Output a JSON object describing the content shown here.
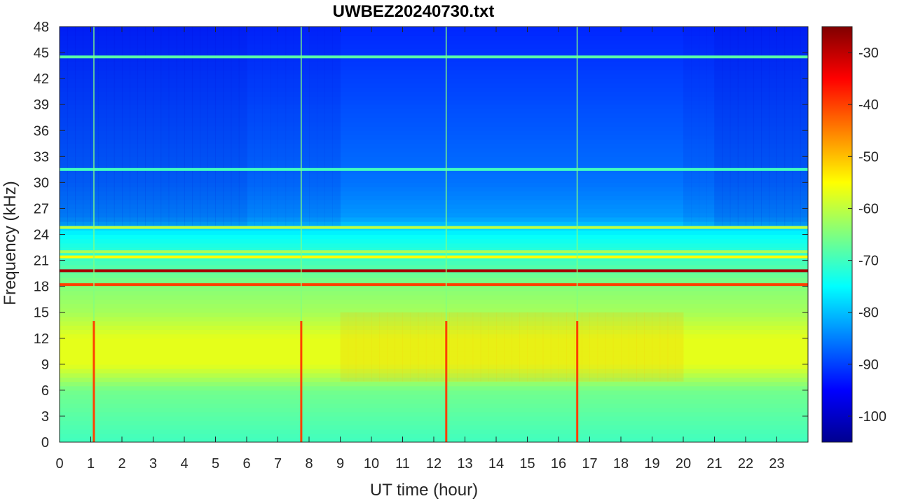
{
  "chart_data": {
    "type": "heatmap",
    "title": "UWBEZ20240730.txt",
    "xlabel": "UT time (hour)",
    "ylabel": "Frequency (kHz)",
    "xlim": [
      0,
      24
    ],
    "ylim": [
      0,
      48
    ],
    "x_ticks": [
      0,
      1,
      2,
      3,
      4,
      5,
      6,
      7,
      8,
      9,
      10,
      11,
      12,
      13,
      14,
      15,
      16,
      17,
      18,
      19,
      20,
      21,
      22,
      23
    ],
    "y_ticks": [
      0,
      3,
      6,
      9,
      12,
      15,
      18,
      21,
      24,
      27,
      30,
      33,
      36,
      39,
      42,
      45,
      48
    ],
    "colorbar": {
      "colormap": "jet",
      "range": [
        -105,
        -25
      ],
      "ticks": [
        -100,
        -90,
        -80,
        -70,
        -60,
        -50,
        -40,
        -30
      ]
    },
    "frequency_profile_db": [
      {
        "f": 0,
        "db": -70
      },
      {
        "f": 3,
        "db": -68
      },
      {
        "f": 6,
        "db": -66
      },
      {
        "f": 9,
        "db": -57
      },
      {
        "f": 12,
        "db": -57
      },
      {
        "f": 15,
        "db": -62
      },
      {
        "f": 17.5,
        "db": -64
      },
      {
        "f": 19,
        "db": -66
      },
      {
        "f": 21,
        "db": -70
      },
      {
        "f": 24,
        "db": -75
      },
      {
        "f": 26,
        "db": -83
      },
      {
        "f": 30,
        "db": -86
      },
      {
        "f": 36,
        "db": -88
      },
      {
        "f": 42,
        "db": -90
      },
      {
        "f": 48,
        "db": -92
      }
    ],
    "narrowband_lines": [
      {
        "f": 19.8,
        "db": -28
      },
      {
        "f": 18.2,
        "db": -40
      },
      {
        "f": 21.4,
        "db": -55
      },
      {
        "f": 24.8,
        "db": -60
      },
      {
        "f": 22.0,
        "db": -62
      },
      {
        "f": 44.5,
        "db": -68
      },
      {
        "f": 31.5,
        "db": -70
      }
    ],
    "broadband_events_hour": [
      1.1,
      7.75,
      12.4,
      16.6
    ]
  }
}
